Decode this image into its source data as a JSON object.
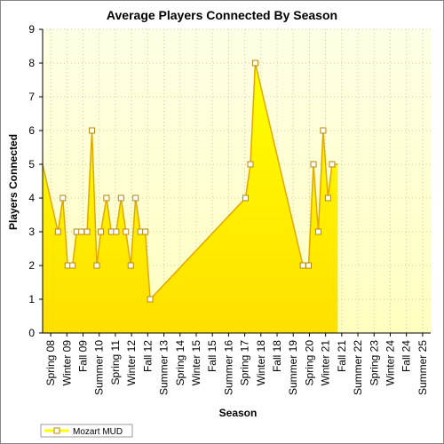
{
  "chart_data": {
    "type": "area",
    "title": "Average Players Connected By Season",
    "xlabel": "Season",
    "ylabel": "Players Connected",
    "ylim": [
      0,
      9
    ],
    "yticks": [
      0,
      1,
      2,
      3,
      4,
      5,
      6,
      7,
      8,
      9
    ],
    "grid": true,
    "legend_position": "bottom-left",
    "colors": {
      "plot_background_top": "#ffffe6",
      "plot_background_bottom": "#ffffc0",
      "area_top": "#ffff00",
      "area_bottom": "#ffe000",
      "line": "#e0a800",
      "marker_fill": "#ffffff",
      "marker_stroke": "#b8860b",
      "gridline": "#cccc99"
    },
    "tick_labels": [
      "Spring 08",
      "Winter 09",
      "Fall 09",
      "Summer 10",
      "Spring 11",
      "Winter 12",
      "Fall 12",
      "Summer 13",
      "Spring 14",
      "Winter 15",
      "Fall 15",
      "Summer 16",
      "Spring 17",
      "Winter 18",
      "Fall 18",
      "Summer 19",
      "Spring 20",
      "Winter 21",
      "Fall 21",
      "Summer 22",
      "Spring 23",
      "Winter 24",
      "Fall 24",
      "Summer 25"
    ],
    "series": [
      {
        "name": "Mozart MUD",
        "points": [
          {
            "x": 0,
            "y": 5,
            "marker": false
          },
          {
            "x": 0.95,
            "y": 3
          },
          {
            "x": 1.25,
            "y": 4
          },
          {
            "x": 1.55,
            "y": 2
          },
          {
            "x": 1.85,
            "y": 2
          },
          {
            "x": 2.1,
            "y": 3
          },
          {
            "x": 2.4,
            "y": 3
          },
          {
            "x": 2.75,
            "y": 3
          },
          {
            "x": 3.05,
            "y": 6
          },
          {
            "x": 3.35,
            "y": 2
          },
          {
            "x": 3.6,
            "y": 3
          },
          {
            "x": 3.95,
            "y": 4
          },
          {
            "x": 4.25,
            "y": 3
          },
          {
            "x": 4.55,
            "y": 3
          },
          {
            "x": 4.85,
            "y": 4
          },
          {
            "x": 5.15,
            "y": 3
          },
          {
            "x": 5.45,
            "y": 2
          },
          {
            "x": 5.75,
            "y": 4
          },
          {
            "x": 6.05,
            "y": 3
          },
          {
            "x": 6.35,
            "y": 3
          },
          {
            "x": 6.65,
            "y": 1
          },
          {
            "x": 12.55,
            "y": 4
          },
          {
            "x": 12.85,
            "y": 5
          },
          {
            "x": 13.15,
            "y": 8
          },
          {
            "x": 16.1,
            "y": 2
          },
          {
            "x": 16.45,
            "y": 2
          },
          {
            "x": 16.75,
            "y": 5
          },
          {
            "x": 17.05,
            "y": 3
          },
          {
            "x": 17.35,
            "y": 6
          },
          {
            "x": 17.65,
            "y": 4
          },
          {
            "x": 17.9,
            "y": 5
          },
          {
            "x": 18.25,
            "y": 5,
            "marker": false
          }
        ]
      }
    ]
  }
}
